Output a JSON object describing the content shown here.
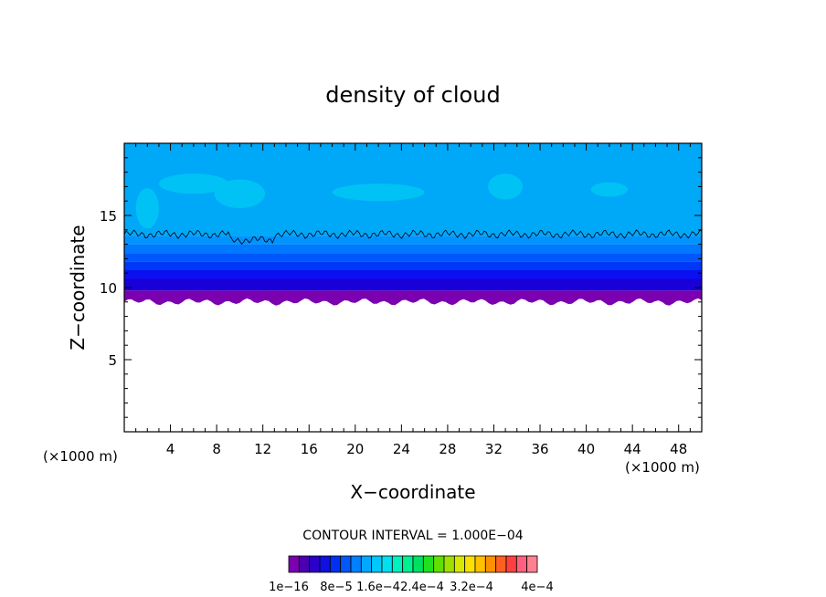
{
  "chart_data": {
    "type": "heatmap",
    "title": "density of cloud",
    "xlabel": "X−coordinate",
    "ylabel": "Z−coordinate",
    "x_unit_label_left": "(×1000 m)",
    "x_unit_label_right": "(×1000 m)",
    "xlim": [
      0,
      50
    ],
    "ylim": [
      0,
      20
    ],
    "x_ticks": [
      4,
      8,
      12,
      16,
      20,
      24,
      28,
      32,
      36,
      40,
      44,
      48
    ],
    "y_ticks": [
      5,
      10,
      15
    ],
    "contour_interval_text": "CONTOUR INTERVAL = 1.000E−04",
    "colorbar": {
      "labels": [
        "1e−16",
        "8e−5",
        "1.6e−4",
        "2.4e−4",
        "3.2e−4",
        "4e−4"
      ],
      "colors": [
        "#7a00b0",
        "#4a00b0",
        "#2a00c8",
        "#1010e0",
        "#0030f0",
        "#0058f8",
        "#0080ff",
        "#00a8ff",
        "#00c8ff",
        "#00e0f0",
        "#00f0c0",
        "#00f090",
        "#00e060",
        "#20e020",
        "#60e000",
        "#a0e000",
        "#d8e800",
        "#f8e000",
        "#ffc000",
        "#ff9000",
        "#ff6020",
        "#ff4040",
        "#ff6080",
        "#ff8090"
      ]
    },
    "cloud_layers": [
      {
        "z_bottom": 9.0,
        "z_top": 9.8,
        "color": "#7a00b0"
      },
      {
        "z_bottom": 9.8,
        "z_top": 10.6,
        "color": "#1a00d8"
      },
      {
        "z_bottom": 10.6,
        "z_top": 11.2,
        "color": "#0a10f0"
      },
      {
        "z_bottom": 11.2,
        "z_top": 11.8,
        "color": "#0038f8"
      },
      {
        "z_bottom": 11.8,
        "z_top": 12.4,
        "color": "#0058fc"
      },
      {
        "z_bottom": 12.4,
        "z_top": 13.0,
        "color": "#0078ff"
      },
      {
        "z_bottom": 13.0,
        "z_top": 13.6,
        "color": "#0094ff"
      },
      {
        "z_bottom": 13.6,
        "z_top": 20.0,
        "color": "#00a8f8"
      }
    ],
    "contour_line_z": 13.7
  }
}
